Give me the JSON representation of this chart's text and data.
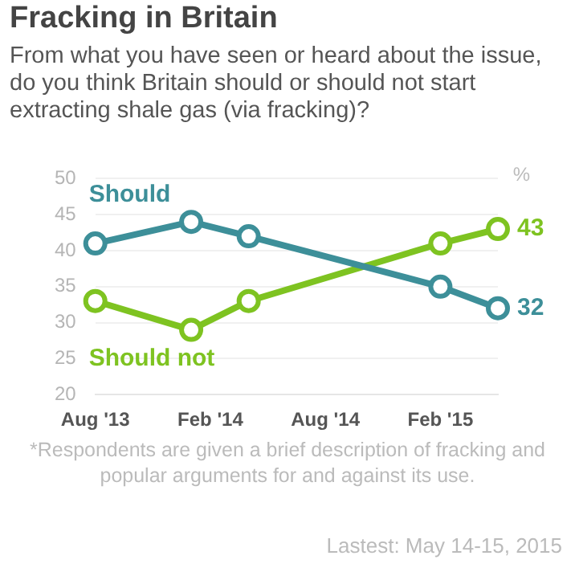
{
  "chart_data": {
    "type": "line",
    "title": "Fracking in Britain",
    "subtitle": "From what you have seen or heard about the issue, do you think Britain should or should not start extracting shale gas (via fracking)?",
    "ylabel": "%",
    "x": [
      "2013-08",
      "2014-01",
      "2014-04",
      "2015-02",
      "2015-05"
    ],
    "series": [
      {
        "name": "Should",
        "color": "#3d8f99",
        "values": [
          41,
          44,
          42,
          35,
          32
        ],
        "value_labels": [
          null,
          null,
          null,
          null,
          "32"
        ]
      },
      {
        "name": "Should not",
        "color": "#7ec321",
        "values": [
          33,
          29,
          33,
          41,
          43
        ],
        "value_labels": [
          null,
          null,
          null,
          null,
          "43"
        ]
      }
    ],
    "xlim": [
      "2013-08",
      "2015-05"
    ],
    "xticks": [
      {
        "value": "2013-08",
        "label": "Aug '13"
      },
      {
        "value": "2014-02",
        "label": "Feb '14"
      },
      {
        "value": "2014-08",
        "label": "Aug '14"
      },
      {
        "value": "2015-02",
        "label": "Feb '15"
      }
    ],
    "ylim": [
      20,
      50
    ],
    "yticks": [
      20,
      25,
      30,
      35,
      40,
      45,
      50
    ],
    "grid": "y",
    "legend": false,
    "marker": "circle",
    "line_style": "solid",
    "annotations": [
      "*Respondents are given a brief description of fracking and popular arguments for and against its use.",
      "Lastest: May 14-15, 2015"
    ]
  }
}
